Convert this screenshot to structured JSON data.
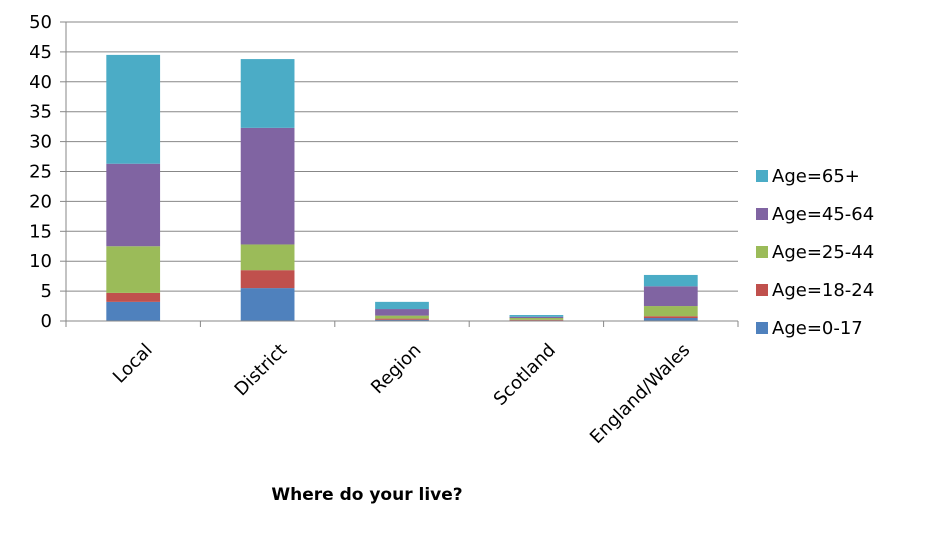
{
  "chart_data": {
    "type": "bar",
    "stacked": true,
    "title": "",
    "xlabel": "Where do your live?",
    "ylabel": "",
    "ylim": [
      0,
      50
    ],
    "yticks": [
      0,
      5,
      10,
      15,
      20,
      25,
      30,
      35,
      40,
      45,
      50
    ],
    "grid": true,
    "legend_position": "right",
    "categories": [
      "Local",
      "District",
      "Region",
      "Scotland",
      "England/Wales"
    ],
    "series": [
      {
        "name": "Age=0-17",
        "color": "#4f81bd",
        "values": [
          3.2,
          5.5,
          0.2,
          0.1,
          0.5
        ]
      },
      {
        "name": "Age=18-24",
        "color": "#c0504d",
        "values": [
          1.5,
          3.0,
          0.2,
          0.1,
          0.3
        ]
      },
      {
        "name": "Age=25-44",
        "color": "#9bbb59",
        "values": [
          7.8,
          4.3,
          0.5,
          0.3,
          1.7
        ]
      },
      {
        "name": "Age=45-64",
        "color": "#8064a2",
        "values": [
          13.8,
          19.5,
          1.1,
          0.2,
          3.3
        ]
      },
      {
        "name": "Age=65+",
        "color": "#4bacc6",
        "values": [
          18.2,
          11.5,
          1.2,
          0.3,
          1.9
        ]
      }
    ]
  }
}
